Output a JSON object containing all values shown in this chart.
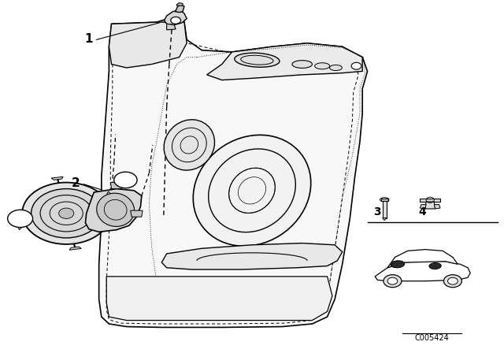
{
  "background_color": "#ffffff",
  "figure_width": 6.4,
  "figure_height": 4.48,
  "dpi": 100,
  "code_text": "C005424",
  "line_color": "#000000",
  "text_color": "#000000"
}
